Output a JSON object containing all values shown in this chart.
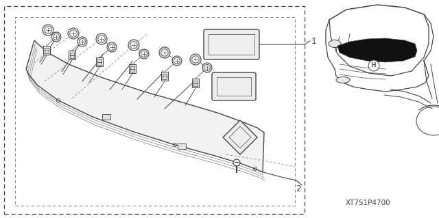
{
  "bg_color": "#ffffff",
  "line_color": "#444444",
  "code_text": "XT7S1P4700",
  "label1": "1",
  "label2": "2"
}
